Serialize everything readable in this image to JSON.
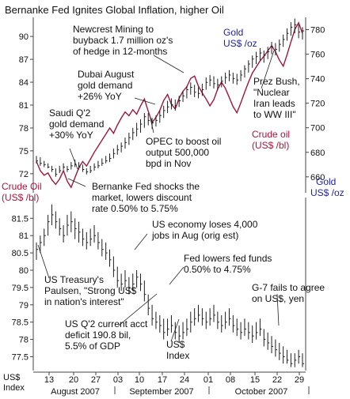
{
  "chart_data": [
    {
      "type": "line",
      "title": "Bernanke Fed Ignites Global Inflation, higher Oil",
      "colors": {
        "gold": "#1d1d1d",
        "oil": "#a0163a",
        "left_label": "#b1123a",
        "right_label": "#1b1fa8",
        "annotation": "#111111"
      },
      "left_axis": {
        "label_line1": "Crude Oil",
        "label_line2": "(US$ /bl)",
        "ticks": [
          "90",
          "87",
          "84",
          "81",
          "78",
          "75",
          "72"
        ],
        "range": [
          69.5,
          92.5
        ]
      },
      "right_axis": {
        "label_line1": "Gold",
        "label_line2": "US$ /oz",
        "ticks": [
          "780",
          "760",
          "740",
          "720",
          "700",
          "680",
          "660"
        ],
        "range": [
          647,
          790
        ]
      },
      "series": [
        {
          "name": "Gold US$ /oz",
          "style": "high-low bars",
          "values": [
            [
              671,
              677,
              673
            ],
            [
              669,
              676,
              671
            ],
            [
              668,
              673,
              670
            ],
            [
              667,
              671,
              668
            ],
            [
              664,
              669,
              666
            ],
            [
              660,
              667,
              662
            ],
            [
              663,
              669,
              665
            ],
            [
              666,
              671,
              668
            ],
            [
              664,
              669,
              666
            ],
            [
              666,
              672,
              669
            ],
            [
              668,
              674,
              670
            ],
            [
              666,
              672,
              668
            ],
            [
              664,
              670,
              666
            ],
            [
              662,
              667,
              664
            ],
            [
              663,
              669,
              665
            ],
            [
              665,
              671,
              668
            ],
            [
              667,
              673,
              669
            ],
            [
              669,
              675,
              671
            ],
            [
              671,
              677,
              673
            ],
            [
              672,
              679,
              675
            ],
            [
              675,
              683,
              679
            ],
            [
              678,
              686,
              682
            ],
            [
              680,
              688,
              685
            ],
            [
              683,
              692,
              688
            ],
            [
              686,
              696,
              692
            ],
            [
              690,
              700,
              696
            ],
            [
              693,
              704,
              699
            ],
            [
              696,
              707,
              703
            ],
            [
              700,
              712,
              709
            ],
            [
              702,
              712,
              706
            ],
            [
              699,
              708,
              704
            ],
            [
              701,
              710,
              706
            ],
            [
              704,
              714,
              710
            ],
            [
              708,
              718,
              714
            ],
            [
              712,
              722,
              717
            ],
            [
              715,
              724,
              719
            ],
            [
              714,
              723,
              718
            ],
            [
              717,
              726,
              722
            ],
            [
              721,
              730,
              726
            ],
            [
              724,
              734,
              731
            ],
            [
              727,
              737,
              733
            ],
            [
              725,
              735,
              729
            ],
            [
              724,
              733,
              728
            ],
            [
              726,
              736,
              731
            ],
            [
              731,
              741,
              737
            ],
            [
              734,
              743,
              739
            ],
            [
              732,
              742,
              736
            ],
            [
              731,
              740,
              735
            ],
            [
              733,
              742,
              738
            ],
            [
              736,
              745,
              741
            ],
            [
              738,
              747,
              743
            ],
            [
              736,
              745,
              740
            ],
            [
              735,
              744,
              739
            ],
            [
              738,
              747,
              743
            ],
            [
              741,
              751,
              748
            ],
            [
              745,
              755,
              752
            ],
            [
              749,
              759,
              756
            ],
            [
              752,
              762,
              758
            ],
            [
              755,
              765,
              761
            ],
            [
              753,
              763,
              759
            ],
            [
              756,
              766,
              762
            ],
            [
              760,
              770,
              766
            ],
            [
              759,
              769,
              764
            ],
            [
              762,
              772,
              768
            ],
            [
              766,
              776,
              772
            ],
            [
              771,
              781,
              777
            ],
            [
              775,
              786,
              782
            ],
            [
              777,
              789,
              784
            ],
            [
              773,
              784,
              778
            ],
            [
              772,
              782,
              779
            ]
          ]
        },
        {
          "name": "Crude oil (US$ /bl)",
          "style": "line",
          "values": [
            73.6,
            72.4,
            71.8,
            72.1,
            71.2,
            70.6,
            71.3,
            72.4,
            71.0,
            70.2,
            71.5,
            72.8,
            73.6,
            73.0,
            73.9,
            74.8,
            75.6,
            76.4,
            77.2,
            78.0,
            77.3,
            78.4,
            79.3,
            80.1,
            79.6,
            80.4,
            79.8,
            80.9,
            81.8,
            80.2,
            78.7,
            79.4,
            80.3,
            81.6,
            82.4,
            81.1,
            80.5,
            81.9,
            82.8,
            83.4,
            84.5,
            84.8,
            83.5,
            82.6,
            81.8,
            80.9,
            81.7,
            83.1,
            84.0,
            83.2,
            82.0,
            80.8,
            80.0,
            81.3,
            82.7,
            84.0,
            85.2,
            86.0,
            86.8,
            87.4,
            88.1,
            88.8,
            88.0,
            86.9,
            86.1,
            87.6,
            89.3,
            90.9,
            91.8,
            90.4
          ]
        }
      ],
      "annotations": [
        {
          "lines": [
            "Newcrest Mining to",
            "buyback 1.7 million oz's",
            "of hedge in 12-months"
          ]
        },
        {
          "lines": [
            "Gold",
            "US$ /oz"
          ],
          "color": "right_label"
        },
        {
          "lines": [
            "Dubai August",
            "gold demand",
            "+26% YoY"
          ]
        },
        {
          "lines": [
            "Prez Bush,",
            "\"Nuclear",
            "Iran leads",
            "to WW III\""
          ]
        },
        {
          "lines": [
            "Saudi Q'2",
            "gold demand",
            "+30% YoY"
          ]
        },
        {
          "lines": [
            "OPEC to boost oil",
            "output 500,000",
            "bpd in Nov"
          ]
        },
        {
          "lines": [
            "Crude oil",
            "(US$ /bl)"
          ],
          "color": "left_label"
        }
      ]
    },
    {
      "type": "line",
      "style": "high-low bars",
      "left_axis": {
        "ticks": [
          "81.5",
          "81",
          "80.5",
          "80",
          "79.5",
          "79",
          "78.5",
          "78",
          "77.5"
        ],
        "range": [
          77.1,
          82.1
        ]
      },
      "x_axis": {
        "ticks": [
          "13",
          "20",
          "27",
          "03",
          "10",
          "17",
          "24",
          "01",
          "08",
          "15",
          "22",
          "29"
        ],
        "months": [
          "August 2007",
          "September 2007",
          "October 2007"
        ],
        "corner_line1": "US$",
        "corner_line2": "Index"
      },
      "series": [
        {
          "name": "US$ Index",
          "values": [
            [
              80.3,
              80.8,
              80.6
            ],
            [
              80.5,
              81.0,
              80.8
            ],
            [
              80.7,
              81.2,
              81.0
            ],
            [
              81.0,
              81.6,
              81.4
            ],
            [
              81.3,
              81.9,
              81.6
            ],
            [
              81.2,
              81.7,
              81.4
            ],
            [
              81.0,
              81.5,
              81.2
            ],
            [
              80.8,
              81.3,
              81.0
            ],
            [
              81.0,
              81.6,
              81.3
            ],
            [
              81.1,
              81.7,
              81.4
            ],
            [
              80.9,
              81.5,
              81.2
            ],
            [
              80.8,
              81.4,
              81.1
            ],
            [
              80.7,
              81.2,
              80.9
            ],
            [
              80.6,
              81.1,
              80.8
            ],
            [
              80.7,
              81.2,
              80.9
            ],
            [
              80.8,
              81.3,
              81.0
            ],
            [
              80.6,
              81.1,
              80.8
            ],
            [
              80.4,
              80.9,
              80.6
            ],
            [
              80.3,
              80.8,
              80.5
            ],
            [
              80.1,
              80.6,
              80.3
            ],
            [
              79.8,
              80.4,
              80.0
            ],
            [
              79.5,
              80.1,
              79.7
            ],
            [
              79.4,
              79.9,
              79.6
            ],
            [
              79.5,
              80.0,
              79.7
            ],
            [
              79.3,
              79.8,
              79.5
            ],
            [
              79.4,
              79.9,
              79.6
            ],
            [
              79.5,
              80.0,
              79.8
            ],
            [
              79.4,
              79.9,
              79.6
            ],
            [
              79.1,
              79.7,
              79.3
            ],
            [
              78.7,
              79.3,
              78.9
            ],
            [
              78.4,
              79.0,
              78.6
            ],
            [
              78.3,
              78.8,
              78.5
            ],
            [
              78.2,
              78.7,
              78.4
            ],
            [
              78.0,
              78.6,
              78.2
            ],
            [
              78.1,
              78.6,
              78.3
            ],
            [
              78.2,
              78.7,
              78.4
            ],
            [
              78.0,
              78.5,
              78.2
            ],
            [
              77.9,
              78.4,
              78.1
            ],
            [
              78.0,
              78.5,
              78.2
            ],
            [
              78.1,
              78.6,
              78.3
            ],
            [
              78.2,
              78.8,
              78.5
            ],
            [
              78.4,
              78.9,
              78.6
            ],
            [
              78.5,
              79.0,
              78.7
            ],
            [
              78.4,
              78.9,
              78.6
            ],
            [
              78.3,
              78.8,
              78.5
            ],
            [
              78.4,
              78.9,
              78.6
            ],
            [
              78.5,
              79.0,
              78.7
            ],
            [
              78.3,
              78.8,
              78.5
            ],
            [
              78.2,
              78.7,
              78.4
            ],
            [
              78.3,
              78.8,
              78.5
            ],
            [
              78.4,
              78.9,
              78.6
            ],
            [
              78.2,
              78.7,
              78.4
            ],
            [
              78.1,
              78.6,
              78.3
            ],
            [
              78.0,
              78.5,
              78.2
            ],
            [
              78.1,
              78.6,
              78.3
            ],
            [
              78.0,
              78.5,
              78.2
            ],
            [
              77.9,
              78.4,
              78.1
            ],
            [
              78.0,
              78.5,
              78.2
            ],
            [
              78.1,
              78.6,
              78.3
            ],
            [
              77.8,
              78.3,
              78.0
            ],
            [
              77.7,
              78.2,
              77.9
            ],
            [
              77.6,
              78.1,
              77.8
            ],
            [
              77.5,
              78.0,
              77.7
            ],
            [
              77.4,
              77.9,
              77.6
            ],
            [
              77.3,
              77.8,
              77.5
            ],
            [
              77.3,
              77.7,
              77.4
            ],
            [
              77.2,
              77.6,
              77.3
            ],
            [
              77.2,
              77.6,
              77.4
            ],
            [
              77.3,
              77.7,
              77.5
            ],
            [
              77.2,
              77.6,
              77.3
            ]
          ]
        }
      ],
      "annotations": [
        {
          "lines": [
            "Bernanke Fed shocks the",
            "market, lowers discount",
            "rate 0.50% to 5.75%"
          ]
        },
        {
          "lines": [
            "US economy loses 4,000",
            "jobs in Aug (orig est)"
          ]
        },
        {
          "lines": [
            "Fed lowers fed funds",
            "0.50% to 4.75%"
          ]
        },
        {
          "lines": [
            "US Treasury's",
            "Paulsen, \"Strong US$",
            "in nation's interest\""
          ]
        },
        {
          "lines": [
            "G-7 fails to agree",
            "on US$, yen"
          ]
        },
        {
          "lines": [
            "US Q'2 current acct",
            "deficit 190.8 bil,",
            "5.5% of GDP"
          ]
        },
        {
          "lines": [
            "US$",
            "Index"
          ]
        }
      ]
    }
  ]
}
